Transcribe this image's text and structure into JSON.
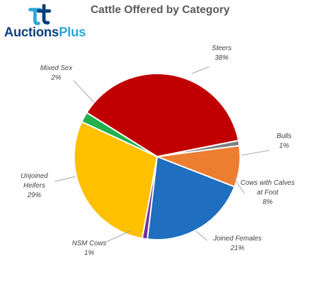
{
  "logo": {
    "name": "Auctions",
    "plus": "Plus"
  },
  "chart_data": {
    "type": "pie",
    "title": "Cattle Offered by Category",
    "slices": [
      {
        "label": "Steers",
        "value": 38,
        "display": "38%",
        "color": "#C00000"
      },
      {
        "label": "Bulls",
        "value": 1,
        "display": "1%",
        "color": "#7F7F7F"
      },
      {
        "label": "Cows with Calves at Foot",
        "value": 8,
        "display": "8%",
        "color": "#ED7D31"
      },
      {
        "label": "Joined Females",
        "value": 21,
        "display": "21%",
        "color": "#1F6EBF"
      },
      {
        "label": "NSM Cows",
        "value": 1,
        "display": "1%",
        "color": "#7030A0"
      },
      {
        "label": "Unjoined Heifers",
        "value": 29,
        "display": "29%",
        "color": "#FFC000"
      },
      {
        "label": "Mixed Sex",
        "value": 2,
        "display": "2%",
        "color": "#22B14C"
      }
    ],
    "legend": "none"
  }
}
